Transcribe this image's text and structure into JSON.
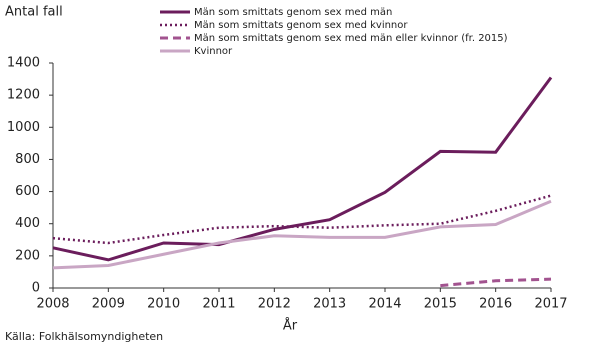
{
  "chart_data": {
    "type": "line",
    "y_label": "Antal fall",
    "x_label": "År",
    "source": "Källa: Folkhälsomyndigheten",
    "x": [
      2008,
      2009,
      2010,
      2011,
      2012,
      2013,
      2014,
      2015,
      2016,
      2017
    ],
    "xlim": [
      2008,
      2017
    ],
    "xticks": [
      2008,
      2009,
      2010,
      2011,
      2012,
      2013,
      2014,
      2015,
      2016,
      2017
    ],
    "ylim": [
      0,
      1400
    ],
    "yticks": [
      0,
      200,
      400,
      600,
      800,
      1000,
      1200,
      1400
    ],
    "grid": false,
    "legend": "top",
    "series": [
      {
        "name": "Män som smittats genom sex med män",
        "color": "#6b1d5c",
        "style": "solid",
        "values": [
          250,
          175,
          280,
          270,
          365,
          425,
          595,
          850,
          845,
          1310
        ]
      },
      {
        "name": "Män som smittats genom sex med kvinnor",
        "color": "#6b1d5c",
        "style": "dotted",
        "values": [
          310,
          280,
          330,
          375,
          385,
          375,
          390,
          400,
          480,
          575
        ]
      },
      {
        "name": "Män som smittats genom sex med män eller kvinnor (fr. 2015)",
        "color": "#a2538f",
        "style": "dashed",
        "values": [
          null,
          null,
          null,
          null,
          null,
          null,
          null,
          15,
          45,
          55
        ]
      },
      {
        "name": "Kvinnor",
        "color": "#c9a6c4",
        "style": "solid",
        "values": [
          125,
          140,
          210,
          280,
          325,
          315,
          315,
          380,
          395,
          540
        ]
      }
    ]
  }
}
